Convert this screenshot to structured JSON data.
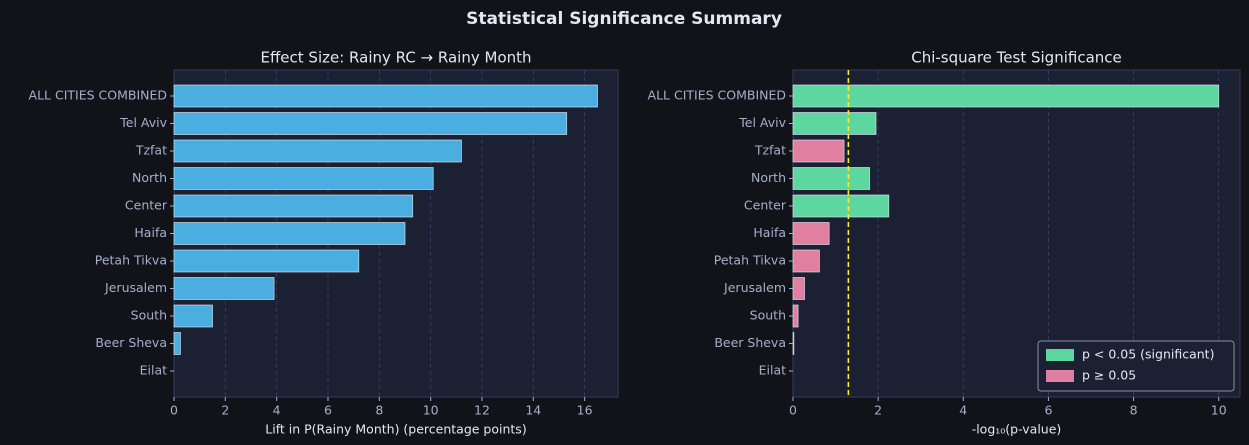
{
  "title": "Statistical Significance Summary",
  "chart_data": [
    {
      "type": "barh",
      "title": "Effect Size: Rainy RC → Rainy Month",
      "x_label": "Lift in P(Rainy Month) (percentage points)",
      "categories": [
        "ALL CITIES COMBINED",
        "Tel Aviv",
        "Tzfat",
        "North",
        "Center",
        "Haifa",
        "Petah Tikva",
        "Jerusalem",
        "South",
        "Beer Sheva",
        "Eilat"
      ],
      "values": [
        16.5,
        15.3,
        11.2,
        10.1,
        9.3,
        9.0,
        7.2,
        3.9,
        1.5,
        0.25,
        0
      ],
      "color": "#4aaee0",
      "xlim": [
        0,
        17.3
      ],
      "xticks": [
        0,
        2,
        4,
        6,
        8,
        10,
        12,
        14,
        16
      ],
      "grid": true
    },
    {
      "type": "barh",
      "title": "Chi-square Test Significance",
      "x_label": "-log₁₀(p-value)",
      "categories": [
        "ALL CITIES COMBINED",
        "Tel Aviv",
        "Tzfat",
        "North",
        "Center",
        "Haifa",
        "Petah Tikva",
        "Jerusalem",
        "South",
        "Beer Sheva",
        "Eilat"
      ],
      "values": [
        10,
        1.95,
        1.2,
        1.8,
        2.25,
        0.85,
        0.62,
        0.27,
        0.12,
        0.02,
        0
      ],
      "colors": [
        "#5ed6a0",
        "#5ed6a0",
        "#e07fa0",
        "#5ed6a0",
        "#5ed6a0",
        "#e07fa0",
        "#e07fa0",
        "#e07fa0",
        "#e07fa0",
        "#e07fa0",
        "#e07fa0"
      ],
      "threshold": 1.301,
      "threshold_color": "#f5e93a",
      "xlim": [
        0,
        10.5
      ],
      "xticks": [
        0,
        2,
        4,
        6,
        8,
        10
      ],
      "grid": true,
      "legend_position": "lower right",
      "legend": [
        {
          "label": "p < 0.05 (significant)",
          "color": "#5ed6a0"
        },
        {
          "label": "p ≥ 0.05",
          "color": "#e07fa0"
        }
      ]
    }
  ]
}
